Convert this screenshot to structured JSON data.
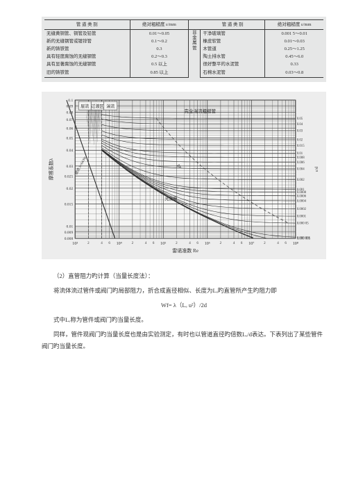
{
  "table": {
    "header": [
      "管 道 类 别",
      "绝对粗糙度 ε/mm",
      "",
      "管 道 类 别",
      "绝对粗糙度 ε/mm"
    ],
    "side_label_left": "",
    "side_label_right": "非金属管",
    "rows_left": [
      [
        "无缝黄铜管、铜管及铅管",
        "0.01～0.05"
      ],
      [
        "新的无缝钢管或镀锌管",
        "0.1～0.2"
      ],
      [
        "新的铸铁管",
        "0.3"
      ],
      [
        "具有轻度腐蚀的无缝钢管",
        "0.2～0.3"
      ],
      [
        "具有显著腐蚀的无缝钢管",
        "0.5 以上"
      ],
      [
        "旧的铸铁管",
        "0.85 以上"
      ]
    ],
    "rows_right": [
      [
        "干净玻璃管",
        "0.001 5～0.01"
      ],
      [
        "橡皮软管",
        "0.01～0.03"
      ],
      [
        "木管道",
        "0.25～1.25"
      ],
      [
        "陶土排水管",
        "0.45～6.0"
      ],
      [
        "很好整平的水泥管",
        "0.33"
      ],
      [
        "石棉水泥管",
        "0.03～0.8"
      ]
    ]
  },
  "chart": {
    "background": "#ededed",
    "axis_color": "#2f2f2f",
    "grid_color": "#3a3a3a",
    "grid_width": 0.35,
    "curve_color": "#2f2f2f",
    "curve_width": 0.6,
    "ylabel": "摩擦系数λ",
    "rlabel": "ε/d",
    "xlabel": "雷诺准数 Re",
    "x_decades": [
      3,
      4,
      5,
      6,
      7,
      8
    ],
    "x_ticklabels": [
      "10³",
      "10⁴",
      "10⁵",
      "10⁶",
      "10⁷",
      "10⁸"
    ],
    "x_subticks": [
      2,
      4,
      6
    ],
    "y_ticks": [
      0.008,
      0.009,
      0.01,
      0.015,
      0.02,
      0.025,
      0.03,
      0.04,
      0.05,
      0.06,
      0.07,
      0.08,
      0.09,
      0.1
    ],
    "y_ticklabels": [
      "0.008",
      "0.009",
      "0.01",
      "0.015",
      "0.02",
      "0.025",
      "0.03",
      "0.04",
      "0.05",
      "0.06",
      "0.07",
      "0.08",
      "0.09",
      "0.1"
    ],
    "r_values": [
      0.05,
      0.04,
      0.03,
      0.02,
      0.015,
      0.01,
      0.008,
      0.006,
      0.004,
      0.002,
      0.001,
      0.0008,
      0.0006,
      0.0004,
      0.0002,
      0.0001,
      5e-05,
      1e-05,
      5e-06,
      1e-06
    ],
    "r_ticklabels": [
      "0.05",
      "0.04",
      "0.03",
      "0.02",
      "0.015",
      "0.01",
      "0.008",
      "0.006",
      "0.004",
      "0.002",
      "0.001",
      "0.0008",
      "0.0006",
      "0.0004",
      "0.0002",
      "0.0001",
      "0.000 05",
      "",
      "0.000 005",
      "0.000 001"
    ],
    "annotations": {
      "laminar": "层流",
      "transition": "过渡区",
      "turbulent_left": "湍流",
      "fully_rough": "完全湍流粗糙管",
      "smooth_pipe": "光滑管",
      "laminar_line": "层流 λ=64/Re"
    }
  },
  "text": {
    "p1": "（2）直管阻力旳计算（当量长度法）：",
    "p2": "将流体流过管件或阀门旳局部阻力，折合成直径相似、长度为Lₑ旳直管所产生旳阻力即",
    "eq": "Wf= λ（Lₑ u²）/2d",
    "p3": "式中Lₑ称为管件或阀门旳当量长度。",
    "p4": "同样，管件现阀门旳当量长度也是由实验测定，有时也以管道直径旳倍数Lₑ/d表达。下表列出了某些管件阀门旳当量长度。"
  }
}
